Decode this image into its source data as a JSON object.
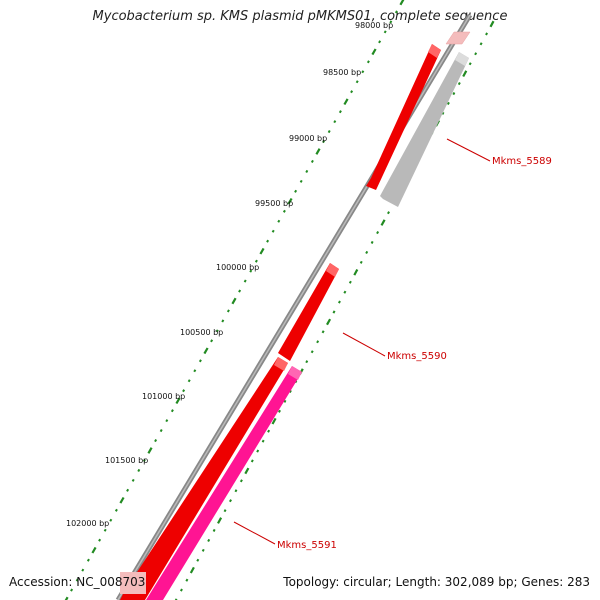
{
  "title": "Mycobacterium sp. KMS plasmid pMKMS01, complete sequence",
  "footer": {
    "accession": "Accession: NC_008703",
    "summary": "Topology: circular; Length: 302,089 bp; Genes: 283"
  },
  "colors": {
    "backbone": "#777777",
    "tick": "#228b22",
    "red": "#ee0000",
    "grey": "#b9b9b9",
    "pink": "#f4bcbc",
    "magenta": "#ff1493",
    "label": "#cc0000"
  },
  "bp_ticks": [
    {
      "label": "98000 bp"
    },
    {
      "label": "98500 bp"
    },
    {
      "label": "99000 bp"
    },
    {
      "label": "99500 bp"
    },
    {
      "label": "100000 bp"
    },
    {
      "label": "100500 bp"
    },
    {
      "label": "101000 bp"
    },
    {
      "label": "101500 bp"
    },
    {
      "label": "102000 bp"
    }
  ],
  "genes": [
    {
      "name": "Mkms_5589"
    },
    {
      "name": "Mkms_5590"
    },
    {
      "name": "Mkms_5591"
    }
  ]
}
